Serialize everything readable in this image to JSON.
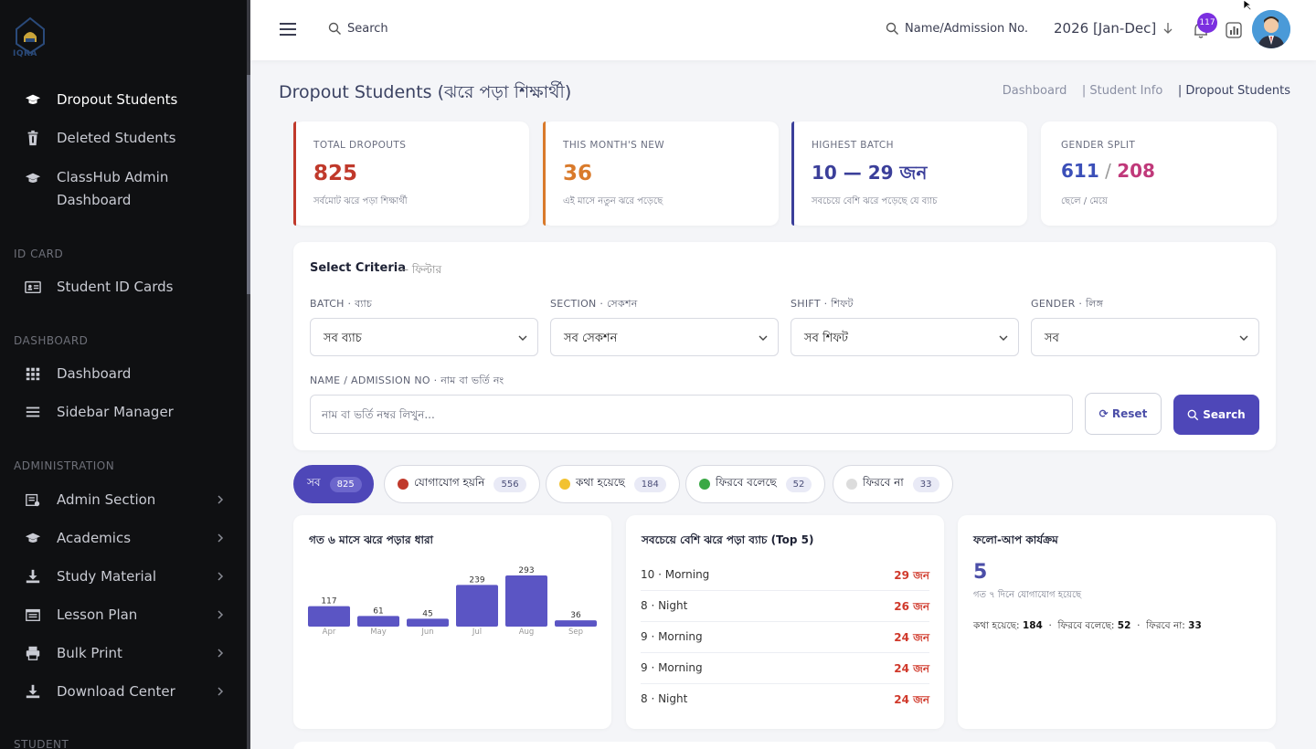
{
  "brand": {
    "logo_text": "IQRA",
    "logo_sub": "ISLAMIC MADRASA"
  },
  "sidebar": {
    "top_items": [
      {
        "label": "Dropout Students",
        "icon": "graduation-cap-icon",
        "active": true
      },
      {
        "label": "Deleted Students",
        "icon": "trash-icon"
      },
      {
        "label": "ClassHub Admin Dashboard",
        "icon": "graduation-cap-icon"
      }
    ],
    "sections": [
      {
        "heading": "ID CARD",
        "items": [
          {
            "label": "Student ID Cards",
            "icon": "id-card-icon"
          }
        ]
      },
      {
        "heading": "DASHBOARD",
        "items": [
          {
            "label": "Dashboard",
            "icon": "grid-icon"
          },
          {
            "label": "Sidebar Manager",
            "icon": "list-icon"
          }
        ]
      },
      {
        "heading": "ADMINISTRATION",
        "items": [
          {
            "label": "Admin Section",
            "icon": "admin-icon"
          },
          {
            "label": "Academics",
            "icon": "graduation-cap-icon"
          },
          {
            "label": "Study Material",
            "icon": "download-icon"
          },
          {
            "label": "Lesson Plan",
            "icon": "calendar-icon"
          },
          {
            "label": "Bulk Print",
            "icon": "printer-icon"
          },
          {
            "label": "Download Center",
            "icon": "download-icon"
          }
        ]
      },
      {
        "heading": "STUDENT",
        "items": []
      }
    ]
  },
  "topbar": {
    "search_label": "Search",
    "admission_search_label": "Name/Admission No.",
    "session": "2026 [Jan-Dec]",
    "notification_count": "117"
  },
  "page": {
    "title": "Dropout Students (ঝরে পড়া শিক্ষার্থী)",
    "breadcrumb": [
      "Dashboard",
      "| Student Info",
      "| Dropout Students"
    ]
  },
  "stats": [
    {
      "label": "TOTAL DROPOUTS",
      "value": "825",
      "sub": "সর্বমোট ঝরে পড়া শিক্ষার্থী",
      "color": "#c0392b"
    },
    {
      "label": "THIS MONTH'S NEW",
      "value": "36",
      "sub": "এই মাসে নতুন ঝরে পড়েছে",
      "color": "#d97a2b"
    },
    {
      "label": "HIGHEST BATCH",
      "value": "10 — 29 জন",
      "sub": "সবচেয়ে বেশি ঝরে পড়েছে যে ব্যাচ",
      "color": "#3b3f9a"
    },
    {
      "label": "GENDER SPLIT",
      "value_male": "611",
      "value_sep": " / ",
      "value_female": "208",
      "sub": "ছেলে / মেয়ে",
      "color_male": "#3b4fb8",
      "color_female": "#c0397a"
    }
  ],
  "criteria": {
    "title": "Select Criteria",
    "title_sub": "— ফিল্টার",
    "fields": [
      {
        "label": "BATCH · ব্যাচ",
        "value": "সব ব্যাচ"
      },
      {
        "label": "SECTION · সেকশন",
        "value": "সব সেকশন"
      },
      {
        "label": "SHIFT · শিফট",
        "value": "সব শিফট"
      },
      {
        "label": "GENDER · লিঙ্গ",
        "value": "সব"
      }
    ],
    "name_label": "NAME / ADMISSION NO · নাম বা ভর্তি নং",
    "name_placeholder": "নাম বা ভর্তি নম্বর লিখুন...",
    "reset_label": "⟳ Reset",
    "search_label": "Search"
  },
  "filters": [
    {
      "label": "সব",
      "count": "825",
      "active": true,
      "dot": ""
    },
    {
      "label": "যোগাযোগ হয়নি",
      "count": "556",
      "dot": "#c0392b"
    },
    {
      "label": "কথা হয়েছে",
      "count": "184",
      "dot": "#f2c230"
    },
    {
      "label": "ফিরবে বলেছে",
      "count": "52",
      "dot": "#3aa845"
    },
    {
      "label": "ফিরবে না",
      "count": "33",
      "dot": "#dcdcdc"
    }
  ],
  "trend": {
    "title": "গত ৬ মাসে ঝরে পড়ার ধারা",
    "chart_data": {
      "type": "bar",
      "categories": [
        "Apr",
        "May",
        "Jun",
        "Jul",
        "Aug",
        "Sep"
      ],
      "values": [
        117,
        61,
        45,
        239,
        293,
        36
      ],
      "color": "#5b55c4"
    }
  },
  "top5": {
    "title": "সবচেয়ে বেশি ঝরে পড়া ব্যাচ (Top 5)",
    "rows": [
      {
        "name": "10 · Morning",
        "count": "29 জন"
      },
      {
        "name": "8 · Night",
        "count": "26 জন"
      },
      {
        "name": "9 · Morning",
        "count": "24 জন"
      },
      {
        "name": "9 · Morning",
        "count": "24 জন"
      },
      {
        "name": "8 · Night",
        "count": "24 জন"
      }
    ]
  },
  "followup": {
    "title": "ফলো-আপ কার্যক্রম",
    "value": "5",
    "sub": "গত ৭ দিনে যোগাযোগ হয়েছে",
    "k1": "কথা হয়েছে:",
    "v1": "184",
    "k2": "ফিরবে বলেছে:",
    "v2": "52",
    "k3": "ফিরবে না:",
    "v3": "33"
  }
}
